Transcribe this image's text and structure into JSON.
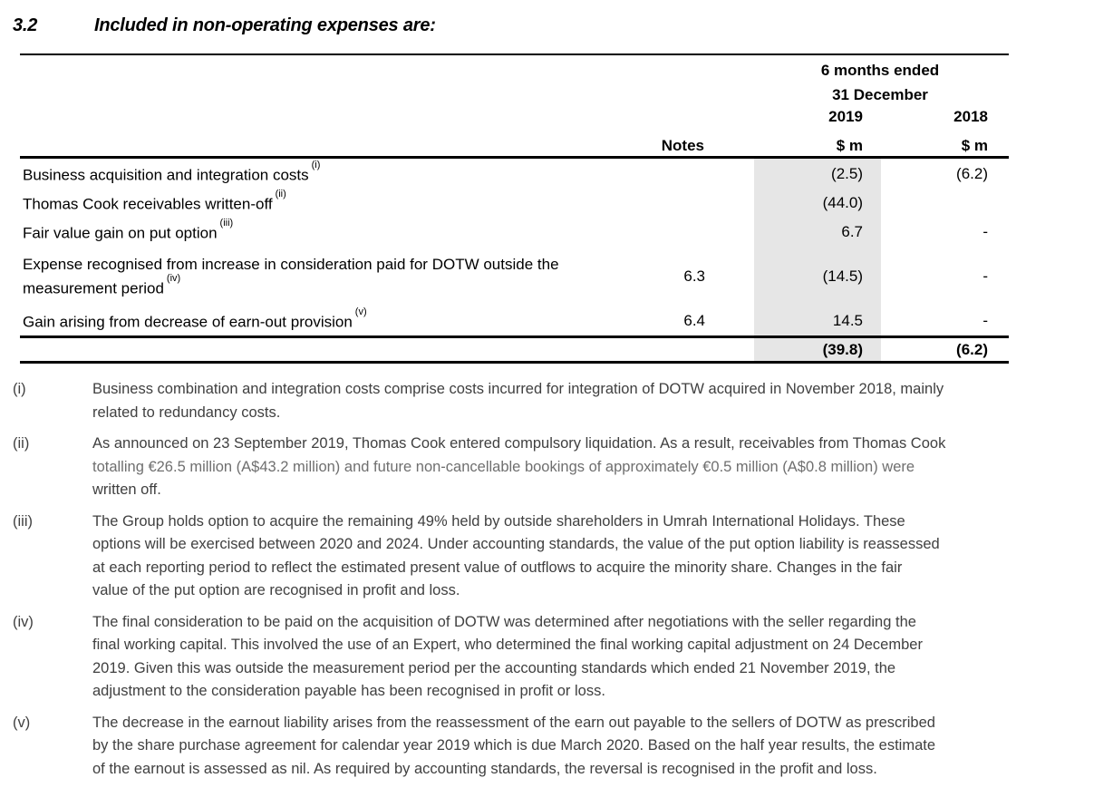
{
  "section": {
    "number": "3.2",
    "title": "Included in non-operating expenses are:"
  },
  "table": {
    "period": {
      "line1": "6 months ended",
      "line2": "31 December"
    },
    "columns": {
      "notes": "Notes",
      "y2019": "2019",
      "y2018": "2018",
      "unit2019": "$ m",
      "unit2018": "$ m"
    },
    "rows": [
      {
        "label": "Business acquisition and integration costs",
        "footnote_ref": "(i)",
        "notes": "",
        "v2019": "(2.5)",
        "v2018": "(6.2)"
      },
      {
        "label": "Thomas Cook receivables written-off",
        "footnote_ref": "(ii)",
        "notes": "",
        "v2019": "(44.0)",
        "v2018": ""
      },
      {
        "label": "Fair value gain on put option",
        "footnote_ref": "(iii)",
        "notes": "",
        "v2019": "6.7",
        "v2018": "-"
      },
      {
        "label": "Expense recognised from increase in consideration paid for DOTW outside the measurement period",
        "footnote_ref": "(iv)",
        "notes": "6.3",
        "v2019": "(14.5)",
        "v2018": "-"
      },
      {
        "label": "Gain arising from decrease of earn-out provision",
        "footnote_ref": "(v)",
        "notes": "6.4",
        "v2019": "14.5",
        "v2018": "-"
      }
    ],
    "total": {
      "v2019": "(39.8)",
      "v2018": "(6.2)"
    }
  },
  "footnotes": [
    {
      "marker": "(i)",
      "lines": [
        {
          "text": "Business combination and integration costs comprise costs incurred for integration of DOTW acquired in November 2018, mainly"
        },
        {
          "text": "related to redundancy costs."
        }
      ]
    },
    {
      "marker": "(ii)",
      "lines": [
        {
          "text": "As announced on 23 September 2019, Thomas Cook entered compulsory liquidation. As a result, receivables from Thomas Cook"
        },
        {
          "text": "totalling €26.5 million (A$43.2 million) and future non-cancellable bookings of approximately €0.5 million (A$0.8 million) were",
          "muted": true
        },
        {
          "text": "written off."
        }
      ]
    },
    {
      "marker": "(iii)",
      "lines": [
        {
          "text": "The Group holds option to acquire the remaining 49% held by outside shareholders in Umrah International Holidays. These"
        },
        {
          "text": "options will be exercised between 2020 and 2024. Under accounting standards, the value of the put option liability is reassessed"
        },
        {
          "text": "at each reporting period to reflect the estimated present value of outflows to acquire the minority share. Changes in the fair"
        },
        {
          "text": "value of the put option are recognised in profit and loss."
        }
      ]
    },
    {
      "marker": "(iv)",
      "lines": [
        {
          "text": "The final consideration to be paid on the acquisition of DOTW was determined after negotiations with the seller regarding the"
        },
        {
          "text": "final working capital. This involved the use of an Expert, who determined the final working capital adjustment on 24 December"
        },
        {
          "text": "2019. Given this was outside the measurement period per the accounting standards which ended 21 November 2019, the"
        },
        {
          "text": "adjustment to the consideration payable has been recognised in profit or loss."
        }
      ]
    },
    {
      "marker": "(v)",
      "lines": [
        {
          "text": "The decrease in the earnout liability arises from the reassessment of the earn out payable to the sellers of DOTW as prescribed"
        },
        {
          "text": "by the share purchase agreement for calendar year 2019 which is due March 2020. Based on the half year results, the estimate"
        },
        {
          "text": "of the earnout is assessed as nil. As required by accounting standards, the reversal is recognised in the profit and loss."
        }
      ]
    }
  ],
  "colors": {
    "text": "#000000",
    "footnote_text": "#404040",
    "footnote_muted": "#6f6f6f",
    "highlight": "#e6e6e6",
    "rule": "#000000"
  }
}
